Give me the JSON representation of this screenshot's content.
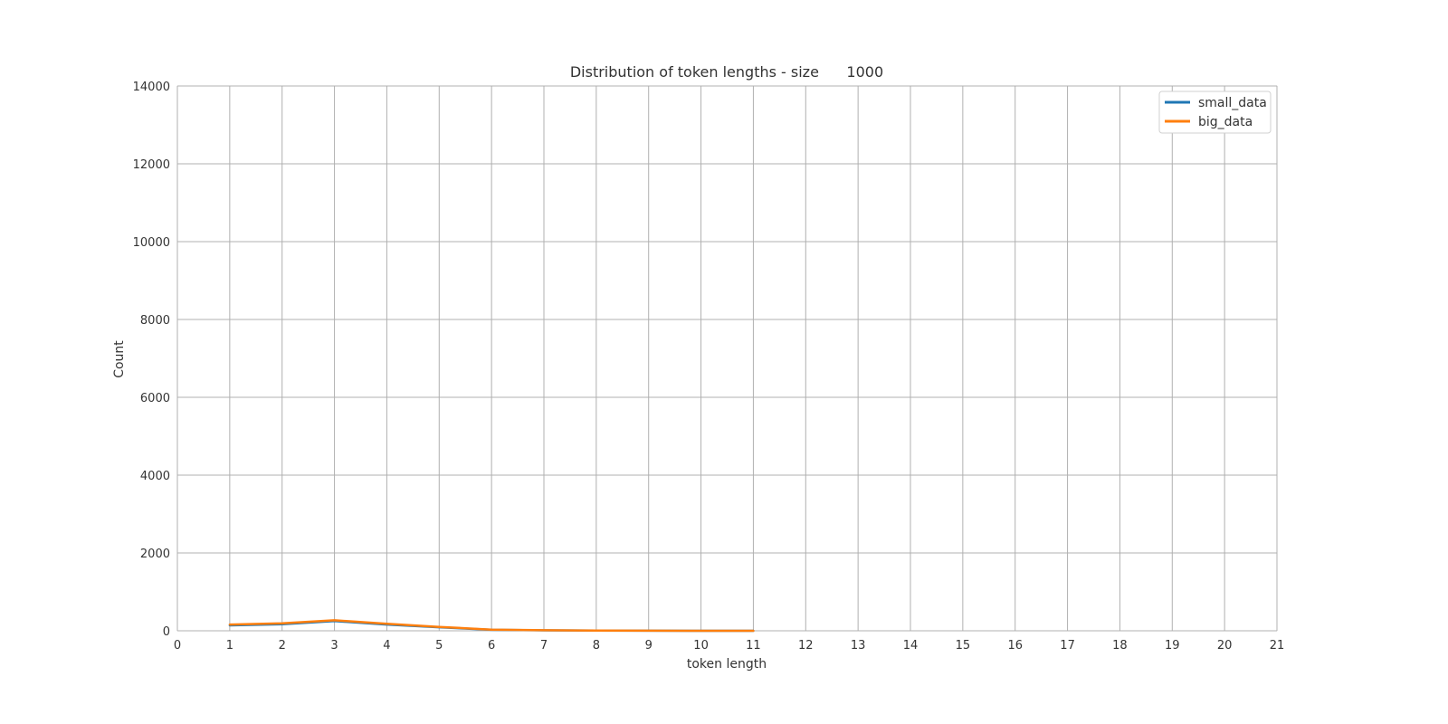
{
  "chart_data": {
    "type": "line",
    "title": "Distribution of token lengths - size      1000",
    "xlabel": "token length",
    "ylabel": "Count",
    "xlim": [
      0,
      21
    ],
    "ylim": [
      0,
      14000
    ],
    "xticks": [
      "0",
      "1",
      "2",
      "3",
      "4",
      "5",
      "6",
      "7",
      "8",
      "9",
      "10",
      "11",
      "12",
      "13",
      "14",
      "15",
      "16",
      "17",
      "18",
      "19",
      "20",
      "21"
    ],
    "yticks": [
      "0",
      "2000",
      "4000",
      "6000",
      "8000",
      "10000",
      "12000",
      "14000"
    ],
    "grid": true,
    "legend_position": "top-right",
    "series": [
      {
        "name": "small_data",
        "color": "#1f77b4",
        "x": [
          1,
          2,
          3,
          4,
          5,
          6,
          7,
          8,
          9,
          10,
          11
        ],
        "y": [
          140,
          170,
          250,
          160,
          90,
          25,
          12,
          5,
          3,
          1,
          1
        ]
      },
      {
        "name": "big_data",
        "color": "#ff7f0e",
        "x": [
          1,
          2,
          3,
          4,
          5,
          6,
          7,
          8,
          9,
          10,
          11
        ],
        "y": [
          160,
          190,
          270,
          180,
          100,
          30,
          15,
          6,
          3,
          1,
          1
        ]
      }
    ]
  }
}
